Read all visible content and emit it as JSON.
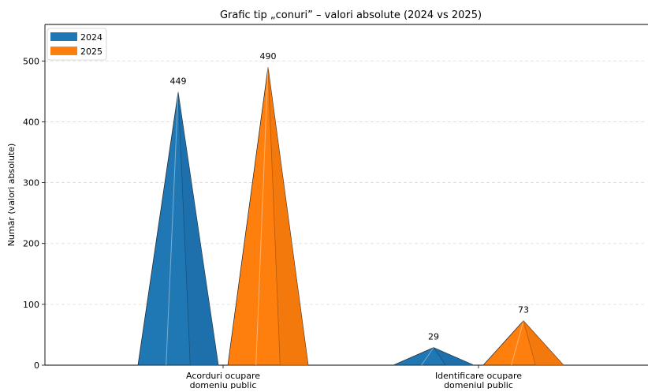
{
  "chart_data": {
    "type": "bar",
    "title": "Grafic tip „conuri” – valori absolute (2024 vs 2025)",
    "ylabel": "Număr (valori absolute)",
    "xlabel": "",
    "ylim": [
      0,
      560
    ],
    "yticks": [
      0,
      100,
      200,
      300,
      400,
      500
    ],
    "grid": true,
    "legend_position": "top-left",
    "categories": [
      [
        "Acorduri ocupare",
        "domeniu public"
      ],
      [
        "Identificare ocupare",
        "domeniul public"
      ]
    ],
    "series": [
      {
        "name": "2024",
        "color": "#1f77b4",
        "values": [
          449,
          29
        ]
      },
      {
        "name": "2025",
        "color": "#ff7f0e",
        "values": [
          490,
          73
        ]
      }
    ]
  }
}
